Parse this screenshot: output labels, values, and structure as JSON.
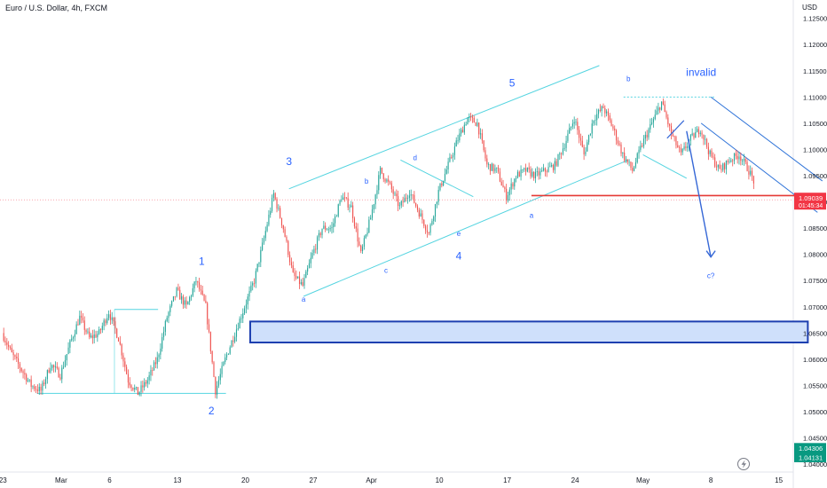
{
  "header": {
    "symbol_title": "Euro / U.S. Dollar, 4h, FXCM",
    "currency": "USD"
  },
  "colors": {
    "up": "#26a69a",
    "down": "#ef5350",
    "channel": "#54d4e0",
    "wave_label": "#2962ff",
    "support": "#e53935",
    "zone_fill": "#cfe0fb",
    "zone_border": "#1d3fb0",
    "arrow": "#3567d6",
    "price_badge": "#f23645",
    "low_badge": "#089981"
  },
  "chart_data": {
    "type": "candlestick",
    "title": "",
    "y_ticks": [
      "1.12500",
      "1.12000",
      "1.11500",
      "1.11000",
      "1.10500",
      "1.10000",
      "1.09500",
      "1.09000",
      "1.08500",
      "1.08000",
      "1.07500",
      "1.07000",
      "1.06500",
      "1.06000",
      "1.05500",
      "1.05000",
      "1.04500",
      "1.04000"
    ],
    "y_tick_values": [
      1.125,
      1.12,
      1.115,
      1.11,
      1.105,
      1.1,
      1.095,
      1.09,
      1.085,
      1.08,
      1.075,
      1.07,
      1.065,
      1.06,
      1.055,
      1.05,
      1.045,
      1.04
    ],
    "ylim": [
      1.0385,
      1.1285
    ],
    "x_ticks": [
      "23",
      "Mar",
      "6",
      "13",
      "20",
      "27",
      "Apr",
      "10",
      "17",
      "24",
      "May",
      "8",
      "15"
    ],
    "x_tick_values": [
      0,
      6,
      11,
      18,
      25,
      32,
      38,
      45,
      52,
      59,
      66,
      73,
      80
    ],
    "xlim": [
      -0.3,
      81.5
    ],
    "price_path": [
      [
        0,
        1.065
      ],
      [
        1,
        1.061
      ],
      [
        2,
        1.058
      ],
      [
        3,
        1.055
      ],
      [
        4,
        1.054
      ],
      [
        5,
        1.059
      ],
      [
        6,
        1.057
      ],
      [
        7,
        1.063
      ],
      [
        8,
        1.068
      ],
      [
        9,
        1.064
      ],
      [
        10,
        1.065
      ],
      [
        11,
        1.069
      ],
      [
        12,
        1.064
      ],
      [
        13,
        1.056
      ],
      [
        14,
        1.0535
      ],
      [
        15,
        1.056
      ],
      [
        16,
        1.06
      ],
      [
        17,
        1.068
      ],
      [
        18,
        1.073
      ],
      [
        19,
        1.07
      ],
      [
        20,
        1.075
      ],
      [
        21,
        1.07
      ],
      [
        22,
        1.054
      ],
      [
        23,
        1.06
      ],
      [
        24,
        1.065
      ],
      [
        25,
        1.07
      ],
      [
        26,
        1.075
      ],
      [
        27,
        1.083
      ],
      [
        28,
        1.0915
      ],
      [
        29,
        1.085
      ],
      [
        30,
        1.076
      ],
      [
        31,
        1.074
      ],
      [
        32,
        1.08
      ],
      [
        33,
        1.085
      ],
      [
        34,
        1.085
      ],
      [
        35,
        1.091
      ],
      [
        36,
        1.089
      ],
      [
        37,
        1.08
      ],
      [
        38,
        1.087
      ],
      [
        39,
        1.096
      ],
      [
        40,
        1.093
      ],
      [
        41,
        1.089
      ],
      [
        42,
        1.092
      ],
      [
        43,
        1.088
      ],
      [
        44,
        1.084
      ],
      [
        45,
        1.092
      ],
      [
        46,
        1.097
      ],
      [
        47,
        1.102
      ],
      [
        48,
        1.106
      ],
      [
        49,
        1.105
      ],
      [
        50,
        1.097
      ],
      [
        51,
        1.096
      ],
      [
        52,
        1.091
      ],
      [
        53,
        1.095
      ],
      [
        54,
        1.096
      ],
      [
        55,
        1.095
      ],
      [
        56,
        1.096
      ],
      [
        57,
        1.097
      ],
      [
        58,
        1.101
      ],
      [
        59,
        1.106
      ],
      [
        60,
        1.099
      ],
      [
        61,
        1.106
      ],
      [
        62,
        1.108
      ],
      [
        63,
        1.104
      ],
      [
        64,
        1.099
      ],
      [
        65,
        1.096
      ],
      [
        66,
        1.101
      ],
      [
        67,
        1.105
      ],
      [
        68,
        1.109
      ],
      [
        69,
        1.103
      ],
      [
        70,
        1.099
      ],
      [
        71,
        1.102
      ],
      [
        72,
        1.104
      ],
      [
        73,
        1.099
      ],
      [
        74,
        1.096
      ],
      [
        75,
        1.098
      ],
      [
        76,
        1.099
      ],
      [
        77,
        1.096
      ],
      [
        78,
        1.092
      ],
      [
        79,
        1.091
      ],
      [
        80,
        1.0904
      ]
    ],
    "wave_labels_large": [
      {
        "text": "1",
        "x": 20.5,
        "y": 1.078
      },
      {
        "text": "2",
        "x": 21.5,
        "y": 1.0495
      },
      {
        "text": "3",
        "x": 29.5,
        "y": 1.097
      },
      {
        "text": "4",
        "x": 47.0,
        "y": 1.079
      },
      {
        "text": "5",
        "x": 52.5,
        "y": 1.112
      },
      {
        "text": "invalid",
        "x": 72.0,
        "y": 1.114
      }
    ],
    "wave_labels_small": [
      {
        "text": "a",
        "x": 31.0,
        "y": 1.071
      },
      {
        "text": "b",
        "x": 37.5,
        "y": 1.0935
      },
      {
        "text": "c",
        "x": 39.5,
        "y": 1.0765
      },
      {
        "text": "d",
        "x": 42.5,
        "y": 1.098
      },
      {
        "text": "e",
        "x": 47.0,
        "y": 1.0835
      },
      {
        "text": "a",
        "x": 54.5,
        "y": 1.087
      },
      {
        "text": "b",
        "x": 64.5,
        "y": 1.113
      },
      {
        "text": "c?",
        "x": 73.0,
        "y": 1.0755
      }
    ],
    "channel_lines": [
      [
        [
          29.5,
          1.0925
        ],
        [
          61.5,
          1.116
        ]
      ],
      [
        [
          31.0,
          1.072
        ],
        [
          64.5,
          1.098
        ]
      ],
      [
        [
          41.0,
          1.098
        ],
        [
          48.5,
          1.091
        ]
      ],
      [
        [
          66.0,
          1.099
        ],
        [
          70.5,
          1.0945
        ]
      ],
      [
        [
          73.0,
          1.11
        ],
        [
          84.5,
          1.094
        ]
      ],
      [
        [
          72.0,
          1.105
        ],
        [
          84.0,
          1.088
        ]
      ]
    ],
    "support_line": [
      [
        54.5,
        1.0912
      ],
      [
        82.0,
        1.0912
      ]
    ],
    "resistance_dotted": [
      [
        64.0,
        1.11
      ],
      [
        73.5,
        1.11
      ]
    ],
    "range_box_left": {
      "x0": 3.5,
      "x1": 23.0,
      "y0": 1.0535,
      "y1": 1.0695
    },
    "zone": {
      "x0": 25.5,
      "x1": 83.0,
      "y0": 1.0632,
      "y1": 1.0672
    },
    "projection_arrow": [
      [
        70.5,
        1.1035
      ],
      [
        73.0,
        1.0795
      ]
    ],
    "price_badges": [
      {
        "label": "1.09039",
        "sub": "01:45:34",
        "value": 1.0904,
        "kind": "price"
      },
      {
        "label": "1.04306",
        "value": 1.0431,
        "kind": "low"
      },
      {
        "label": "1.04131",
        "value": 1.0413,
        "kind": "low2"
      }
    ]
  }
}
